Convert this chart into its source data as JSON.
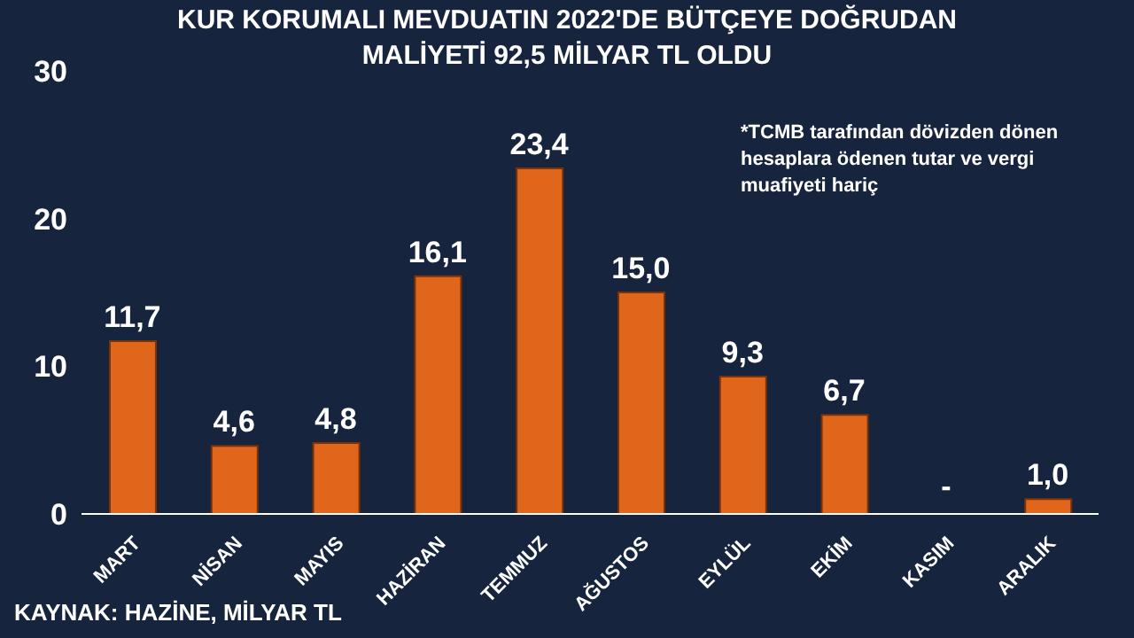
{
  "chart_data": {
    "type": "bar",
    "title": "KUR KORUMALI MEVDUATIN 2022'DE BÜTÇEYE DOĞRUDAN MALİYETİ 92,5 MİLYAR TL OLDU",
    "categories": [
      "MART",
      "NİSAN",
      "MAYIS",
      "HAZİRAN",
      "TEMMUZ",
      "AĞUSTOS",
      "EYLÜL",
      "EKİM",
      "KASIM",
      "ARALIK"
    ],
    "values": [
      11.7,
      4.6,
      4.8,
      16.1,
      23.4,
      15.0,
      9.3,
      6.7,
      null,
      1.0
    ],
    "value_labels": [
      "11,7",
      "4,6",
      "4,8",
      "16,1",
      "23,4",
      "15,0",
      "9,3",
      "6,7",
      "-",
      "1,0"
    ],
    "color": "#e0661c",
    "ylim": [
      0,
      30
    ],
    "yticks": [
      0,
      10,
      20,
      30
    ],
    "grid": false,
    "legend": false,
    "annotations": [
      "*TCMB tarafından dövizden dönen hesaplara ödenen tutar ve vergi muafiyeti hariç",
      "KAYNAK: HAZİNE, MİLYAR TL"
    ]
  }
}
